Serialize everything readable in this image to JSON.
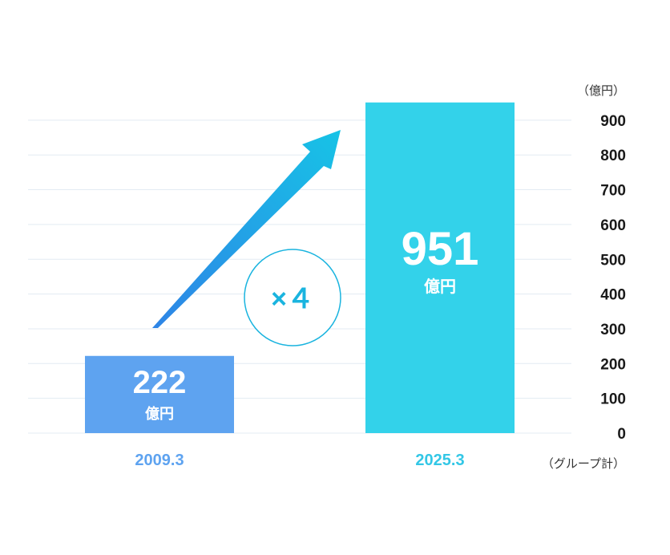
{
  "chart_data": {
    "type": "bar",
    "categories": [
      "2009.3",
      "2025.3"
    ],
    "values": [
      222,
      951
    ],
    "value_unit_labels": [
      "億円",
      "億円"
    ],
    "y_unit": "（億円）",
    "note": "（グループ計）",
    "multiplier_label": "×４",
    "ylim": [
      0,
      950
    ],
    "yticks": [
      0,
      100,
      200,
      300,
      400,
      500,
      600,
      700,
      800,
      900
    ],
    "grid": true,
    "colors": {
      "bars": [
        "#5ea3f0",
        "#33d2ea"
      ],
      "categories": [
        "#5ea3f0",
        "#33c7e6"
      ],
      "accent": "#1ab4df",
      "grid": "#e3ebf3"
    }
  }
}
